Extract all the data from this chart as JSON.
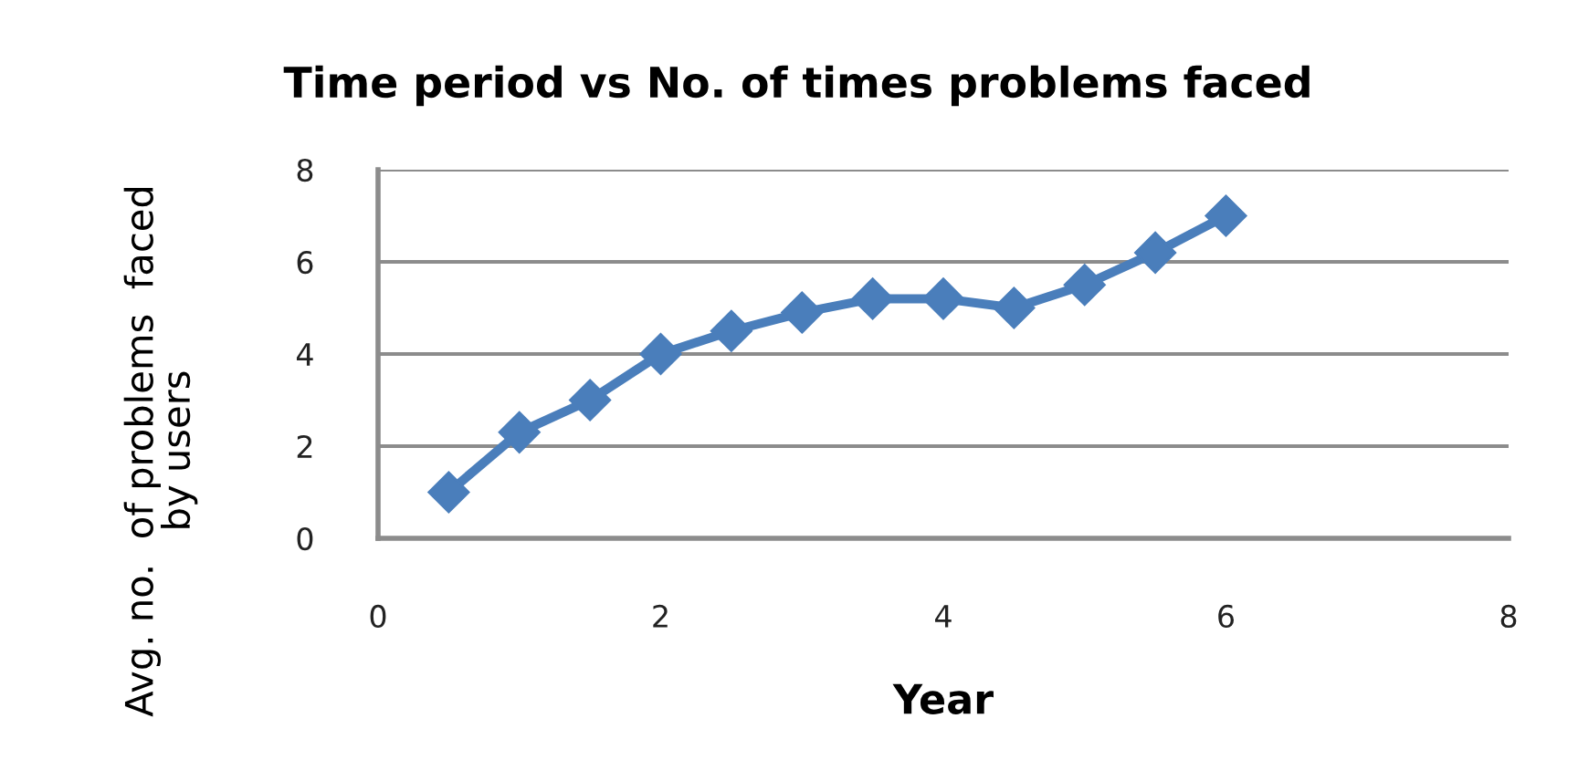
{
  "chart_data": {
    "type": "line",
    "title": "Time period vs No. of times problems faced",
    "xlabel": "Year",
    "ylabel": "Avg. no.  of problems  faced\nby users",
    "x": [
      0.5,
      1,
      1.5,
      2,
      2.5,
      3,
      3.5,
      4,
      4.5,
      5,
      5.5,
      6
    ],
    "series": [
      {
        "color": "#4a7ebb",
        "values": [
          1.0,
          2.3,
          3.0,
          4.0,
          4.5,
          4.9,
          5.2,
          5.2,
          5.0,
          5.5,
          6.2,
          7.0
        ]
      }
    ],
    "xlim": [
      0,
      8
    ],
    "xticks": [
      0,
      2,
      4,
      6,
      8
    ],
    "ylim": [
      0,
      8
    ],
    "yticks": [
      0,
      2,
      4,
      6,
      8
    ],
    "grid": "y",
    "marker": "diamond",
    "line_style": "solid"
  }
}
